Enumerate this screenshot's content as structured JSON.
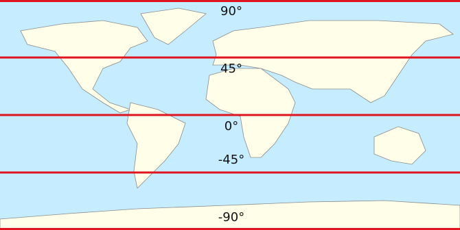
{
  "map": {
    "latitudes": [
      {
        "value": 90,
        "label": "90°"
      },
      {
        "value": 45,
        "label": "45°"
      },
      {
        "value": 0,
        "label": "0°"
      },
      {
        "value": -45,
        "label": "-45°"
      },
      {
        "value": -90,
        "label": "-90°"
      }
    ]
  }
}
